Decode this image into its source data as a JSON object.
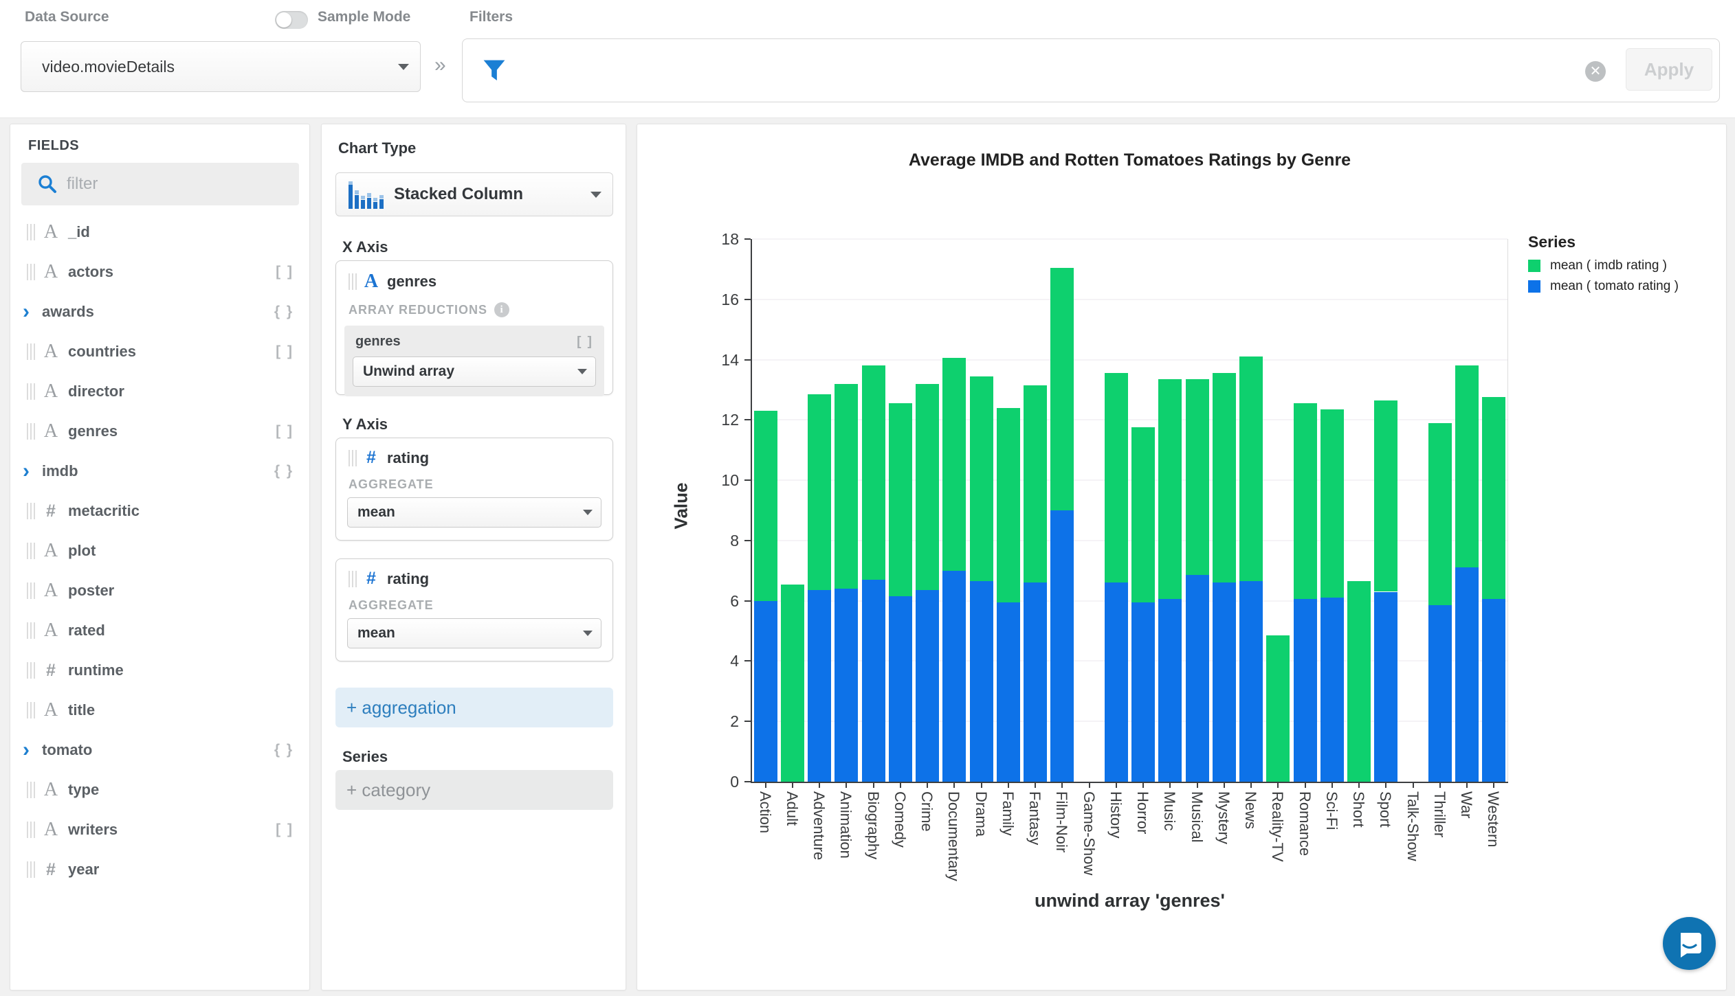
{
  "topbar": {
    "data_source_label": "Data Source",
    "data_source_value": "video.movieDetails",
    "sample_mode_label": "Sample Mode",
    "filters_label": "Filters",
    "apply_label": "Apply"
  },
  "fields_panel": {
    "title": "FIELDS",
    "filter_placeholder": "filter",
    "items": [
      {
        "name": "_id",
        "type": "string",
        "badge": ""
      },
      {
        "name": "actors",
        "type": "string",
        "badge": "[ ]"
      },
      {
        "name": "awards",
        "type": "object",
        "badge": "{ }",
        "expandable": true
      },
      {
        "name": "countries",
        "type": "string",
        "badge": "[ ]"
      },
      {
        "name": "director",
        "type": "string",
        "badge": ""
      },
      {
        "name": "genres",
        "type": "string",
        "badge": "[ ]"
      },
      {
        "name": "imdb",
        "type": "object",
        "badge": "{ }",
        "expandable": true
      },
      {
        "name": "metacritic",
        "type": "number",
        "badge": ""
      },
      {
        "name": "plot",
        "type": "string",
        "badge": ""
      },
      {
        "name": "poster",
        "type": "string",
        "badge": ""
      },
      {
        "name": "rated",
        "type": "string",
        "badge": ""
      },
      {
        "name": "runtime",
        "type": "number",
        "badge": ""
      },
      {
        "name": "title",
        "type": "string",
        "badge": ""
      },
      {
        "name": "tomato",
        "type": "object",
        "badge": "{ }",
        "expandable": true
      },
      {
        "name": "type",
        "type": "string",
        "badge": ""
      },
      {
        "name": "writers",
        "type": "string",
        "badge": "[ ]"
      },
      {
        "name": "year",
        "type": "number",
        "badge": ""
      }
    ]
  },
  "encoding_panel": {
    "chart_type_label": "Chart Type",
    "chart_type_value": "Stacked Column",
    "x_axis_label": "X Axis",
    "x_field": "genres",
    "array_reductions_label": "ARRAY REDUCTIONS",
    "reduction_field": "genres",
    "reduction_badge": "[ ]",
    "reduction_value": "Unwind array",
    "y_axis_label": "Y Axis",
    "aggregate_label": "AGGREGATE",
    "channels": [
      {
        "field": "rating",
        "aggregate_value": "mean"
      },
      {
        "field": "rating",
        "aggregate_value": "mean"
      }
    ],
    "add_aggregation_label": "+ aggregation",
    "series_label": "Series",
    "add_category_label": "+ category"
  },
  "chart_data": {
    "type": "bar",
    "stacked": true,
    "title": "Average IMDB and Rotten Tomatoes Ratings by Genre",
    "xlabel": "unwind array 'genres'",
    "ylabel": "Value",
    "ylim": [
      0,
      18
    ],
    "yticks": [
      0,
      2,
      4,
      6,
      8,
      10,
      12,
      14,
      16,
      18
    ],
    "grid": true,
    "legend_title": "Series",
    "legend_position": "right",
    "categories": [
      "Action",
      "Adult",
      "Adventure",
      "Animation",
      "Biography",
      "Comedy",
      "Crime",
      "Documentary",
      "Drama",
      "Family",
      "Fantasy",
      "Film-Noir",
      "Game-Show",
      "History",
      "Horror",
      "Music",
      "Musical",
      "Mystery",
      "News",
      "Reality-TV",
      "Romance",
      "Sci-Fi",
      "Short",
      "Sport",
      "Talk-Show",
      "Thriller",
      "War",
      "Western"
    ],
    "series": [
      {
        "name": "mean ( imdb rating )",
        "color": "#0ed06e",
        "values": [
          6.3,
          6.55,
          6.5,
          6.8,
          7.1,
          6.4,
          6.85,
          7.05,
          6.8,
          6.45,
          6.55,
          8.05,
          0,
          6.95,
          5.8,
          7.3,
          6.5,
          6.95,
          7.45,
          4.85,
          6.5,
          6.25,
          6.65,
          6.35,
          0,
          6.05,
          6.7,
          6.7
        ]
      },
      {
        "name": "mean ( tomato rating )",
        "color": "#0d72e8",
        "values": [
          6.0,
          0,
          6.35,
          6.4,
          6.7,
          6.15,
          6.35,
          7.0,
          6.65,
          5.95,
          6.6,
          9.0,
          0,
          6.6,
          5.95,
          6.05,
          6.85,
          6.6,
          6.65,
          0,
          6.05,
          6.1,
          0,
          6.3,
          0,
          5.85,
          7.1,
          6.05
        ]
      }
    ]
  }
}
